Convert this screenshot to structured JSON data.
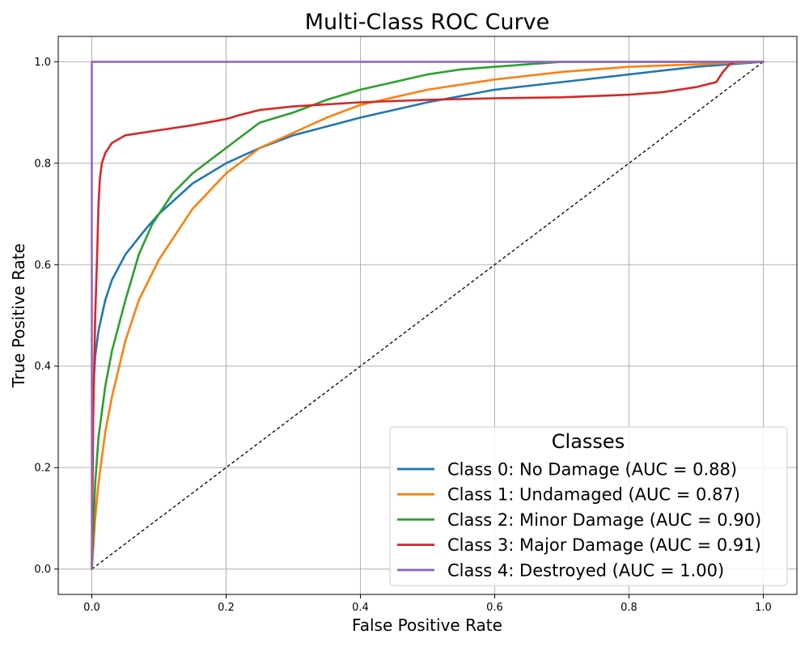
{
  "chart_data": {
    "type": "line",
    "title": "Multi-Class ROC Curve",
    "xlabel": "False Positive Rate",
    "ylabel": "True Positive Rate",
    "xlim": [
      -0.05,
      1.05
    ],
    "ylim": [
      -0.05,
      1.05
    ],
    "xticks": [
      "0.0",
      "0.2",
      "0.4",
      "0.6",
      "0.8",
      "1.0"
    ],
    "yticks": [
      "0.0",
      "0.2",
      "0.4",
      "0.6",
      "0.8",
      "1.0"
    ],
    "grid": true,
    "legend": {
      "title": "Classes",
      "location": "lower-right"
    },
    "reference_line": {
      "style": "dashed",
      "color": "#000000",
      "x": [
        0,
        1
      ],
      "y": [
        0,
        1
      ]
    },
    "series": [
      {
        "name": "Class 0: No Damage (AUC = 0.88)",
        "color": "#1f77b4",
        "x": [
          0,
          0.002,
          0.005,
          0.01,
          0.02,
          0.03,
          0.05,
          0.08,
          0.1,
          0.15,
          0.2,
          0.25,
          0.3,
          0.4,
          0.5,
          0.6,
          0.7,
          0.8,
          0.9,
          1.0
        ],
        "y": [
          0,
          0.35,
          0.42,
          0.47,
          0.53,
          0.57,
          0.62,
          0.67,
          0.7,
          0.76,
          0.8,
          0.83,
          0.855,
          0.89,
          0.92,
          0.945,
          0.96,
          0.975,
          0.99,
          1.0
        ]
      },
      {
        "name": "Class 1: Undamaged (AUC = 0.87)",
        "color": "#ff7f0e",
        "x": [
          0,
          0.005,
          0.01,
          0.02,
          0.03,
          0.05,
          0.07,
          0.1,
          0.15,
          0.2,
          0.25,
          0.3,
          0.35,
          0.4,
          0.5,
          0.6,
          0.7,
          0.8,
          0.9,
          1.0
        ],
        "y": [
          0,
          0.1,
          0.17,
          0.27,
          0.34,
          0.45,
          0.53,
          0.61,
          0.71,
          0.78,
          0.83,
          0.86,
          0.89,
          0.915,
          0.945,
          0.965,
          0.98,
          0.99,
          0.995,
          1.0
        ]
      },
      {
        "name": "Class 2: Minor Damage (AUC = 0.90)",
        "color": "#2ca02c",
        "x": [
          0,
          0.005,
          0.01,
          0.02,
          0.03,
          0.05,
          0.07,
          0.09,
          0.12,
          0.15,
          0.2,
          0.25,
          0.3,
          0.35,
          0.4,
          0.45,
          0.5,
          0.55,
          0.6,
          0.7,
          0.8,
          1.0
        ],
        "y": [
          0,
          0.17,
          0.26,
          0.36,
          0.43,
          0.53,
          0.62,
          0.68,
          0.74,
          0.78,
          0.83,
          0.88,
          0.9,
          0.925,
          0.945,
          0.96,
          0.975,
          0.985,
          0.99,
          1.0,
          1.0,
          1.0
        ]
      },
      {
        "name": "Class 3: Major Damage (AUC = 0.91)",
        "color": "#d62728",
        "x": [
          0,
          0.002,
          0.005,
          0.008,
          0.01,
          0.012,
          0.015,
          0.02,
          0.03,
          0.05,
          0.1,
          0.15,
          0.2,
          0.22,
          0.25,
          0.3,
          0.4,
          0.5,
          0.6,
          0.7,
          0.8,
          0.85,
          0.9,
          0.93,
          0.94,
          0.95,
          0.96,
          1.0
        ],
        "y": [
          0,
          0.3,
          0.5,
          0.62,
          0.72,
          0.77,
          0.8,
          0.82,
          0.84,
          0.855,
          0.865,
          0.875,
          0.887,
          0.895,
          0.905,
          0.912,
          0.92,
          0.925,
          0.928,
          0.93,
          0.935,
          0.94,
          0.95,
          0.96,
          0.98,
          0.995,
          1.0,
          1.0
        ]
      },
      {
        "name": "Class 4: Destroyed (AUC = 1.00)",
        "color": "#9467bd",
        "x": [
          0,
          0,
          1.0
        ],
        "y": [
          0,
          1.0,
          1.0
        ]
      }
    ]
  }
}
